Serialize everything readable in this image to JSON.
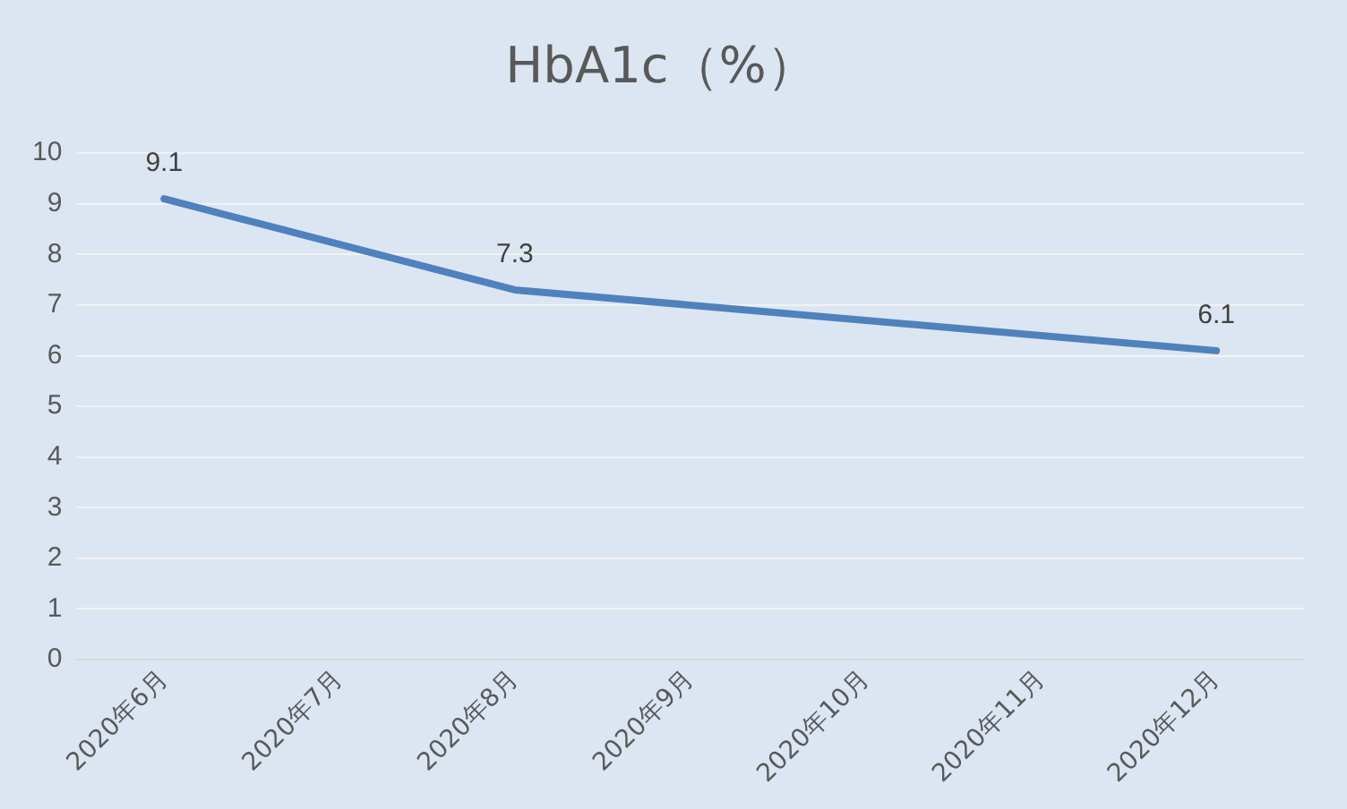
{
  "chart_data": {
    "type": "line",
    "title": "HbA1c（%）",
    "categories": [
      "2020年6月",
      "2020年7月",
      "2020年8月",
      "2020年9月",
      "2020年10月",
      "2020年11月",
      "2020年12月"
    ],
    "series": [
      {
        "color": "#4f81bd",
        "values": [
          9.1,
          null,
          7.3,
          null,
          null,
          null,
          6.1
        ]
      }
    ],
    "ylim": [
      0,
      10
    ],
    "yticks": [
      0,
      1,
      2,
      3,
      4,
      5,
      6,
      7,
      8,
      9,
      10
    ],
    "grid": "y",
    "legend": false,
    "marker": "none",
    "line_style": "solid",
    "data_labels": true
  }
}
